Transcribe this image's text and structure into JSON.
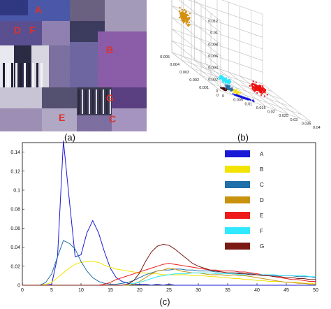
{
  "figure": {
    "panel_a": {
      "caption": "(a)",
      "region_labels": [
        "A",
        "D",
        "F",
        "B",
        "G",
        "E",
        "C"
      ],
      "label_color": "#e0302a"
    },
    "panel_b": {
      "caption": "(b)",
      "z_ticks": [
        "0",
        "0.002",
        "0.004",
        "0.006",
        "0.008",
        "0.01",
        "0.012"
      ],
      "left_ticks": [
        "0.005",
        "0.004",
        "0.003",
        "0.002",
        "0.001",
        "0"
      ],
      "right_ticks": [
        "0",
        "0.005",
        "0.01",
        "0.015",
        "0.02",
        "0.025",
        "0.03",
        "0.035",
        "0.04"
      ],
      "clusters": [
        {
          "name": "D",
          "color": "#d4900f"
        },
        {
          "name": "E",
          "color": "#ee1111"
        },
        {
          "name": "F",
          "color": "#2fe6ff"
        },
        {
          "name": "B",
          "color": "#f4e21a"
        },
        {
          "name": "C",
          "color": "#2b6fa8"
        },
        {
          "name": "A",
          "color": "#1010e0"
        },
        {
          "name": "G",
          "color": "#4a0808"
        }
      ]
    },
    "panel_c": {
      "caption": "(c)"
    }
  },
  "chart_data": {
    "type": "line",
    "title": "",
    "xlabel": "",
    "ylabel": "",
    "xlim": [
      0,
      50
    ],
    "ylim": [
      0,
      0.15
    ],
    "x_ticks": [
      "0",
      "5",
      "10",
      "15",
      "20",
      "25",
      "30",
      "35",
      "40",
      "45",
      "50"
    ],
    "y_ticks": [
      "0",
      "0.02",
      "0.04",
      "0.06",
      "0.08",
      "0.1",
      "0.12",
      "0.14"
    ],
    "x": [
      0,
      1,
      2,
      3,
      4,
      5,
      6,
      7,
      8,
      9,
      10,
      11,
      12,
      13,
      14,
      15,
      16,
      17,
      18,
      19,
      20,
      21,
      22,
      23,
      24,
      25,
      26,
      27,
      28,
      29,
      30,
      31,
      32,
      33,
      34,
      35,
      36,
      37,
      38,
      39,
      40,
      41,
      42,
      43,
      44,
      45,
      46,
      47,
      48,
      49,
      50
    ],
    "legend_position": "right",
    "series": [
      {
        "name": "A",
        "color": "#1a1ad6",
        "values": [
          0,
          0,
          0,
          0,
          0,
          0.001,
          0.03,
          0.152,
          0.09,
          0.03,
          0.032,
          0.055,
          0.068,
          0.055,
          0.035,
          0.018,
          0.008,
          0.004,
          0.002,
          0.001,
          0.001,
          0.001,
          0,
          0.001,
          0,
          0.001,
          0,
          0,
          0,
          0,
          0,
          0,
          0,
          0,
          0,
          0,
          0,
          0,
          0,
          0,
          0,
          0,
          0,
          0,
          0,
          0,
          0,
          0,
          0,
          0,
          0
        ]
      },
      {
        "name": "B",
        "color": "#f2e400",
        "values": [
          0,
          0,
          0,
          0,
          0.001,
          0.003,
          0.008,
          0.013,
          0.018,
          0.022,
          0.024,
          0.025,
          0.025,
          0.024,
          0.021,
          0.019,
          0.017,
          0.016,
          0.015,
          0.014,
          0.013,
          0.013,
          0.012,
          0.012,
          0.011,
          0.011,
          0.011,
          0.011,
          0.011,
          0.01,
          0.01,
          0.01,
          0.009,
          0.009,
          0.008,
          0.008,
          0.007,
          0.007,
          0.006,
          0.006,
          0.005,
          0.005,
          0.004,
          0.004,
          0.004,
          0.003,
          0.003,
          0.003,
          0.002,
          0.002,
          0.002
        ]
      },
      {
        "name": "C",
        "color": "#1f6fa8",
        "values": [
          0,
          0,
          0,
          0,
          0.003,
          0.012,
          0.03,
          0.047,
          0.044,
          0.038,
          0.025,
          0.015,
          0.008,
          0.004,
          0.002,
          0.001,
          0.001,
          0.002,
          0.003,
          0.005,
          0.008,
          0.011,
          0.013,
          0.015,
          0.016,
          0.016,
          0.017,
          0.017,
          0.016,
          0.016,
          0.015,
          0.015,
          0.015,
          0.014,
          0.014,
          0.013,
          0.013,
          0.013,
          0.012,
          0.012,
          0.011,
          0.011,
          0.011,
          0.01,
          0.01,
          0.01,
          0.01,
          0.009,
          0.009,
          0.009,
          0.008
        ]
      },
      {
        "name": "D",
        "color": "#c8920c",
        "values": [
          0,
          0,
          0,
          0,
          0,
          0,
          0,
          0,
          0,
          0,
          0,
          0,
          0,
          0,
          0,
          0,
          0,
          0,
          0,
          0.001,
          0.004,
          0.008,
          0.012,
          0.015,
          0.016,
          0.018,
          0.017,
          0.015,
          0.014,
          0.013,
          0.013,
          0.012,
          0.011,
          0.011,
          0.011,
          0.01,
          0.011,
          0.01,
          0.01,
          0.009,
          0.008,
          0.007,
          0.006,
          0.005,
          0.004,
          0.003,
          0.003,
          0.002,
          0.002,
          0.001,
          0.001
        ]
      },
      {
        "name": "E",
        "color": "#ee1a1a",
        "values": [
          0,
          0,
          0,
          0,
          0,
          0,
          0,
          0,
          0,
          0,
          0,
          0,
          0,
          0,
          0.001,
          0.003,
          0.006,
          0.008,
          0.01,
          0.012,
          0.014,
          0.016,
          0.018,
          0.02,
          0.022,
          0.023,
          0.022,
          0.021,
          0.02,
          0.019,
          0.018,
          0.017,
          0.016,
          0.016,
          0.015,
          0.015,
          0.015,
          0.014,
          0.014,
          0.013,
          0.012,
          0.011,
          0.01,
          0.009,
          0.008,
          0.007,
          0.006,
          0.006,
          0.005,
          0.004,
          0.004
        ]
      },
      {
        "name": "F",
        "color": "#30e8ff",
        "values": [
          0,
          0,
          0,
          0,
          0,
          0,
          0,
          0,
          0,
          0,
          0,
          0,
          0,
          0,
          0,
          0,
          0,
          0,
          0.001,
          0.002,
          0.003,
          0.005,
          0.007,
          0.009,
          0.01,
          0.011,
          0.012,
          0.012,
          0.012,
          0.013,
          0.013,
          0.013,
          0.013,
          0.012,
          0.012,
          0.012,
          0.012,
          0.011,
          0.011,
          0.011,
          0.011,
          0.011,
          0.011,
          0.011,
          0.01,
          0.01,
          0.01,
          0.01,
          0.01,
          0.009,
          0.009
        ]
      },
      {
        "name": "G",
        "color": "#7a1a12",
        "values": [
          0,
          0,
          0,
          0,
          0,
          0,
          0,
          0,
          0,
          0,
          0,
          0,
          0,
          0,
          0,
          0,
          0,
          0,
          0.001,
          0.005,
          0.013,
          0.025,
          0.035,
          0.041,
          0.043,
          0.042,
          0.038,
          0.033,
          0.028,
          0.023,
          0.02,
          0.018,
          0.016,
          0.015,
          0.014,
          0.013,
          0.013,
          0.012,
          0.012,
          0.011,
          0.011,
          0.01,
          0.01,
          0.009,
          0.009,
          0.008,
          0.008,
          0.007,
          0.007,
          0.006,
          0.006
        ]
      }
    ]
  }
}
